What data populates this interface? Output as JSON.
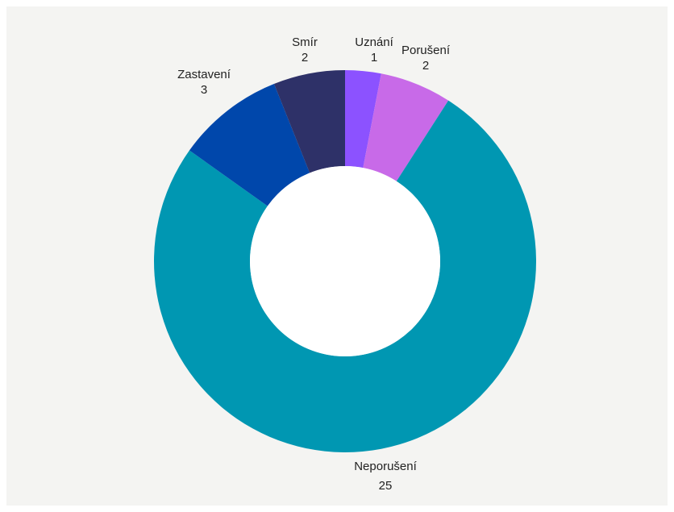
{
  "chart_data": {
    "type": "pie",
    "variant": "donut",
    "categories": [
      "Uznání",
      "Porušení",
      "Neporušení",
      "Zastavení",
      "Smír"
    ],
    "values": [
      1,
      2,
      25,
      3,
      2
    ],
    "colors": [
      "#8c52ff",
      "#c86ae8",
      "#0097b2",
      "#0047ab",
      "#2e3168"
    ],
    "legend": "none",
    "data_labels": "category and value, outside slices"
  }
}
